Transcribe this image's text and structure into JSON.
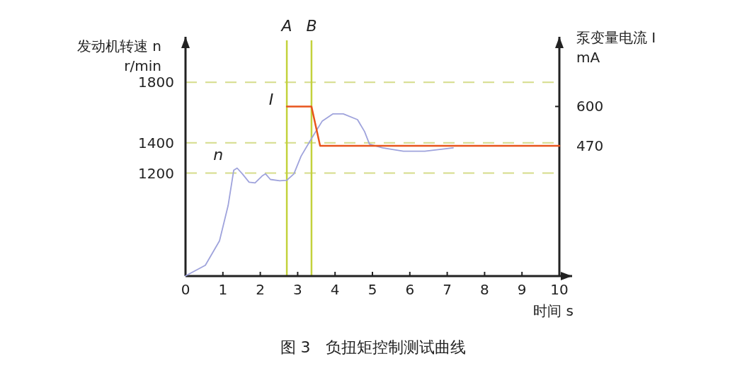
{
  "chart_data": {
    "type": "line",
    "title": "图 3　负扭矩控制测试曲线",
    "xlabel": "时间  s",
    "ylabel": "发动机转速  n\nr/min",
    "y2label": "泵变量电流  I\nmA",
    "xlim": [
      0,
      10
    ],
    "xticks": [
      0,
      1,
      2,
      3,
      4,
      5,
      6,
      7,
      8,
      9,
      10
    ],
    "ylim": [
      520,
      2100
    ],
    "yticks": [
      1200,
      1400,
      1800
    ],
    "y2lim": [
      40,
      830
    ],
    "y2ticks": [
      470,
      600
    ],
    "grid": "y",
    "series": [
      {
        "name": "n",
        "color": "#9fa3dc",
        "x": [
          0,
          0.53,
          0.91,
          1.14,
          1.29,
          1.38,
          1.52,
          1.7,
          1.86,
          2.05,
          2.14,
          2.27,
          2.52,
          2.71,
          2.9,
          3.09,
          3.37,
          3.66,
          3.94,
          4.22,
          4.6,
          4.79,
          4.92,
          5.27,
          5.83,
          6.4,
          7.16
        ],
        "values": [
          521,
          591,
          753,
          986,
          1219,
          1233,
          1195,
          1140,
          1135,
          1181,
          1195,
          1158,
          1149,
          1153,
          1195,
          1312,
          1428,
          1544,
          1591,
          1591,
          1553,
          1474,
          1391,
          1367,
          1344,
          1344,
          1367
        ]
      },
      {
        "name": "I",
        "color": "#e8541c",
        "axis": "y2",
        "x": [
          2.71,
          3.37,
          3.6,
          10
        ],
        "values": [
          600,
          600,
          470,
          470
        ]
      }
    ],
    "ref_lines": [
      {
        "axis": "x",
        "value": 2.71,
        "label": "A",
        "color": "#c3d23c"
      },
      {
        "axis": "x",
        "value": 3.37,
        "label": "B",
        "color": "#c3d23c"
      }
    ]
  }
}
